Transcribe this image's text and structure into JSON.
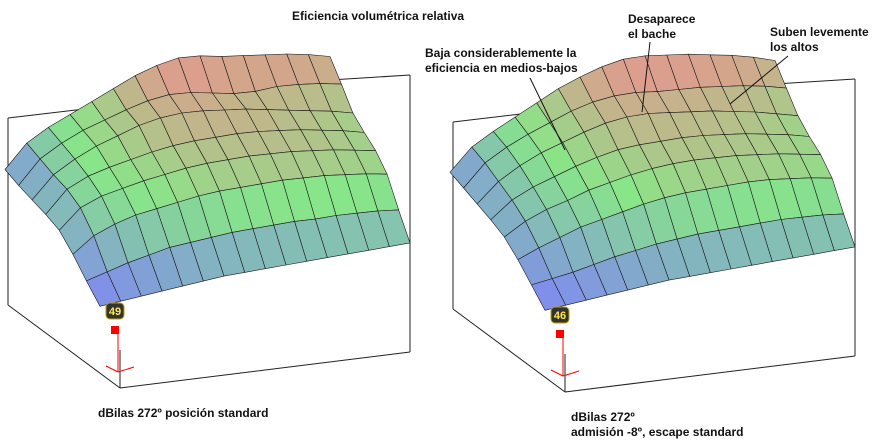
{
  "title": "Eficiencia volumétrica relativa",
  "annotations": {
    "medios_bajos": [
      "Baja considerablemente la",
      "eficiencia en medios-bajos"
    ],
    "bache": [
      "Desaparece",
      "el bache"
    ],
    "altos": [
      "Suben levemente",
      "los altos"
    ]
  },
  "captions": {
    "left": [
      "dBilas 272º posición standard"
    ],
    "right": [
      "dBilas 272º",
      "admisión -8º, escape standard"
    ]
  },
  "colors": {
    "low": "#7f87f2",
    "mid": "#88e688",
    "high": "#f08e8e",
    "grid": "#1a1a1a",
    "box": "#222222",
    "marker": "#ff0000",
    "badge_bg": "#333333",
    "badge_text": "#ffe94a"
  },
  "chart_data": [
    {
      "type": "surface",
      "caption": "dBilas 272º posición standard",
      "marker_value": "49",
      "rows": [
        [
          25,
          27,
          29,
          31,
          33,
          35,
          37,
          38,
          39,
          40,
          41,
          42,
          43,
          44,
          45,
          46
        ],
        [
          30,
          35,
          40,
          44,
          48,
          50,
          52,
          54,
          55,
          56,
          57,
          57,
          58,
          58,
          58,
          57
        ],
        [
          36,
          48,
          55,
          60,
          63,
          66,
          69,
          71,
          72,
          73,
          74,
          74,
          74,
          73,
          72,
          70
        ],
        [
          40,
          55,
          62,
          66,
          70,
          73,
          76,
          78,
          79,
          80,
          80,
          80,
          79,
          78,
          76,
          74
        ],
        [
          38,
          55,
          63,
          68,
          72,
          76,
          79,
          81,
          82,
          83,
          83,
          82,
          81,
          79,
          77,
          74
        ],
        [
          35,
          52,
          62,
          70,
          76,
          82,
          86,
          88,
          88,
          87,
          86,
          84,
          82,
          80,
          78,
          75
        ],
        [
          32,
          50,
          60,
          68,
          74,
          80,
          85,
          88,
          88,
          86,
          84,
          84,
          86,
          86,
          85,
          83
        ],
        [
          30,
          48,
          58,
          66,
          74,
          82,
          90,
          96,
          100,
          100,
          98,
          97,
          96,
          95,
          93,
          90
        ]
      ]
    },
    {
      "type": "surface",
      "caption": "dBilas 272º admisión -8º, escape standard",
      "marker_value": "46",
      "rows": [
        [
          25,
          27,
          29,
          31,
          33,
          35,
          37,
          38,
          39,
          40,
          41,
          42,
          43,
          44,
          45,
          46
        ],
        [
          30,
          33,
          36,
          40,
          44,
          47,
          50,
          52,
          54,
          55,
          56,
          57,
          58,
          58,
          58,
          57
        ],
        [
          35,
          42,
          48,
          54,
          58,
          62,
          66,
          69,
          71,
          72,
          73,
          74,
          74,
          73,
          72,
          70
        ],
        [
          38,
          48,
          55,
          60,
          66,
          70,
          74,
          77,
          79,
          80,
          80,
          80,
          79,
          78,
          76,
          74
        ],
        [
          37,
          50,
          58,
          64,
          70,
          75,
          79,
          81,
          82,
          83,
          83,
          82,
          81,
          79,
          77,
          74
        ],
        [
          35,
          50,
          60,
          68,
          74,
          80,
          85,
          88,
          89,
          88,
          87,
          86,
          84,
          82,
          79,
          76
        ],
        [
          33,
          50,
          60,
          68,
          75,
          82,
          87,
          90,
          91,
          90,
          90,
          90,
          89,
          88,
          86,
          83
        ],
        [
          31,
          48,
          58,
          67,
          76,
          85,
          92,
          98,
          102,
          103,
          102,
          101,
          99,
          97,
          94,
          90
        ]
      ]
    }
  ]
}
